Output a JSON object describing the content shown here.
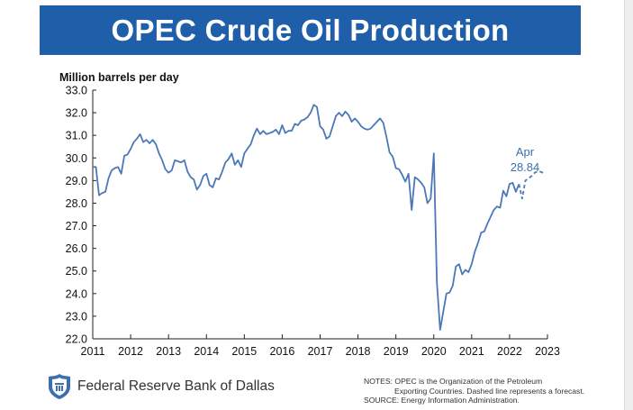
{
  "colors": {
    "banner": "#1f5ea8",
    "line": "#4a78b8",
    "annotation": "#3d6fb0"
  },
  "footer": {
    "logo_icon": "federal-reserve-seal-icon",
    "bank_name": "Federal Reserve Bank of Dallas",
    "notes": [
      "NOTES: OPEC is the Organization of the Petroleum",
      "Exporting Countries. Dashed line represents a forecast.",
      "SOURCE: Energy Information Administration."
    ]
  },
  "chart_data": {
    "type": "line",
    "title": "OPEC Crude Oil Production",
    "ylabel": "Million barrels per day",
    "xlim": [
      2011,
      2023
    ],
    "ylim": [
      22,
      33
    ],
    "yticks": [
      "22.0",
      "23.0",
      "24.0",
      "25.0",
      "26.0",
      "27.0",
      "28.0",
      "29.0",
      "30.0",
      "31.0",
      "32.0",
      "33.0"
    ],
    "xticks": [
      "2011",
      "2012",
      "2013",
      "2014",
      "2015",
      "2016",
      "2017",
      "2018",
      "2019",
      "2020",
      "2021",
      "2022",
      "2023"
    ],
    "grid": false,
    "series": [
      {
        "style": "solid",
        "x": [
          2011.0,
          2011.083,
          2011.167,
          2011.25,
          2011.333,
          2011.417,
          2011.5,
          2011.583,
          2011.667,
          2011.75,
          2011.833,
          2011.917,
          2012.0,
          2012.083,
          2012.167,
          2012.25,
          2012.333,
          2012.417,
          2012.5,
          2012.583,
          2012.667,
          2012.75,
          2012.833,
          2012.917,
          2013.0,
          2013.083,
          2013.167,
          2013.25,
          2013.333,
          2013.417,
          2013.5,
          2013.583,
          2013.667,
          2013.75,
          2013.833,
          2013.917,
          2014.0,
          2014.083,
          2014.167,
          2014.25,
          2014.333,
          2014.417,
          2014.5,
          2014.583,
          2014.667,
          2014.75,
          2014.833,
          2014.917,
          2015.0,
          2015.083,
          2015.167,
          2015.25,
          2015.333,
          2015.417,
          2015.5,
          2015.583,
          2015.667,
          2015.75,
          2015.833,
          2015.917,
          2016.0,
          2016.083,
          2016.167,
          2016.25,
          2016.333,
          2016.417,
          2016.5,
          2016.583,
          2016.667,
          2016.75,
          2016.833,
          2016.917,
          2017.0,
          2017.083,
          2017.167,
          2017.25,
          2017.333,
          2017.417,
          2017.5,
          2017.583,
          2017.667,
          2017.75,
          2017.833,
          2017.917,
          2018.0,
          2018.083,
          2018.167,
          2018.25,
          2018.333,
          2018.417,
          2018.5,
          2018.583,
          2018.667,
          2018.75,
          2018.833,
          2018.917,
          2019.0,
          2019.083,
          2019.167,
          2019.25,
          2019.333,
          2019.417,
          2019.5,
          2019.583,
          2019.667,
          2019.75,
          2019.833,
          2019.917,
          2020.0,
          2020.083,
          2020.167,
          2020.25,
          2020.333,
          2020.417,
          2020.5,
          2020.583,
          2020.667,
          2020.75,
          2020.833,
          2020.917,
          2021.0,
          2021.083,
          2021.167,
          2021.25,
          2021.333,
          2021.417,
          2021.5,
          2021.583,
          2021.667,
          2021.75,
          2021.833,
          2021.917,
          2022.0,
          2022.083,
          2022.167,
          2022.25
        ],
        "y": [
          29.6,
          29.6,
          28.35,
          28.45,
          28.5,
          29.1,
          29.45,
          29.55,
          29.6,
          29.3,
          30.1,
          30.15,
          30.4,
          30.7,
          30.85,
          31.05,
          30.7,
          30.8,
          30.65,
          30.8,
          30.6,
          30.2,
          29.9,
          29.5,
          29.35,
          29.45,
          29.9,
          29.85,
          29.8,
          29.9,
          29.4,
          29.15,
          29.05,
          28.6,
          28.8,
          29.2,
          29.3,
          28.8,
          28.7,
          29.1,
          29.05,
          29.4,
          29.8,
          29.95,
          30.2,
          29.7,
          29.9,
          29.6,
          30.2,
          30.4,
          30.6,
          31.0,
          31.3,
          31.05,
          31.2,
          31.05,
          31.1,
          31.15,
          31.25,
          31.05,
          31.45,
          31.1,
          31.2,
          31.2,
          31.5,
          31.45,
          31.65,
          31.7,
          31.8,
          32.0,
          32.35,
          32.25,
          31.4,
          31.25,
          30.85,
          30.95,
          31.4,
          31.85,
          32.0,
          31.85,
          32.05,
          31.9,
          31.6,
          31.75,
          31.6,
          31.4,
          31.3,
          31.25,
          31.3,
          31.45,
          31.6,
          31.75,
          31.55,
          30.95,
          30.25,
          30.05,
          29.55,
          29.5,
          29.25,
          28.95,
          29.3,
          27.7,
          29.15,
          29.05,
          28.9,
          28.7,
          28.0,
          28.2,
          30.2,
          24.5,
          22.4,
          23.2,
          24.0,
          24.05,
          24.35,
          25.2,
          25.3,
          24.85,
          25.05,
          24.95,
          25.3,
          25.85,
          26.25,
          26.7,
          26.75,
          27.1,
          27.4,
          27.7,
          27.85,
          27.8,
          28.55,
          28.3,
          28.85,
          28.9,
          28.5,
          28.84
        ]
      },
      {
        "style": "dashed",
        "x": [
          2022.25,
          2022.333,
          2022.417,
          2022.5,
          2022.583,
          2022.667,
          2022.75,
          2022.833,
          2022.917
        ],
        "y": [
          28.84,
          28.2,
          29.0,
          29.1,
          29.2,
          29.35,
          29.4,
          29.38,
          29.3
        ]
      }
    ],
    "annotation": {
      "label": "Apr",
      "value": "28.84"
    }
  }
}
